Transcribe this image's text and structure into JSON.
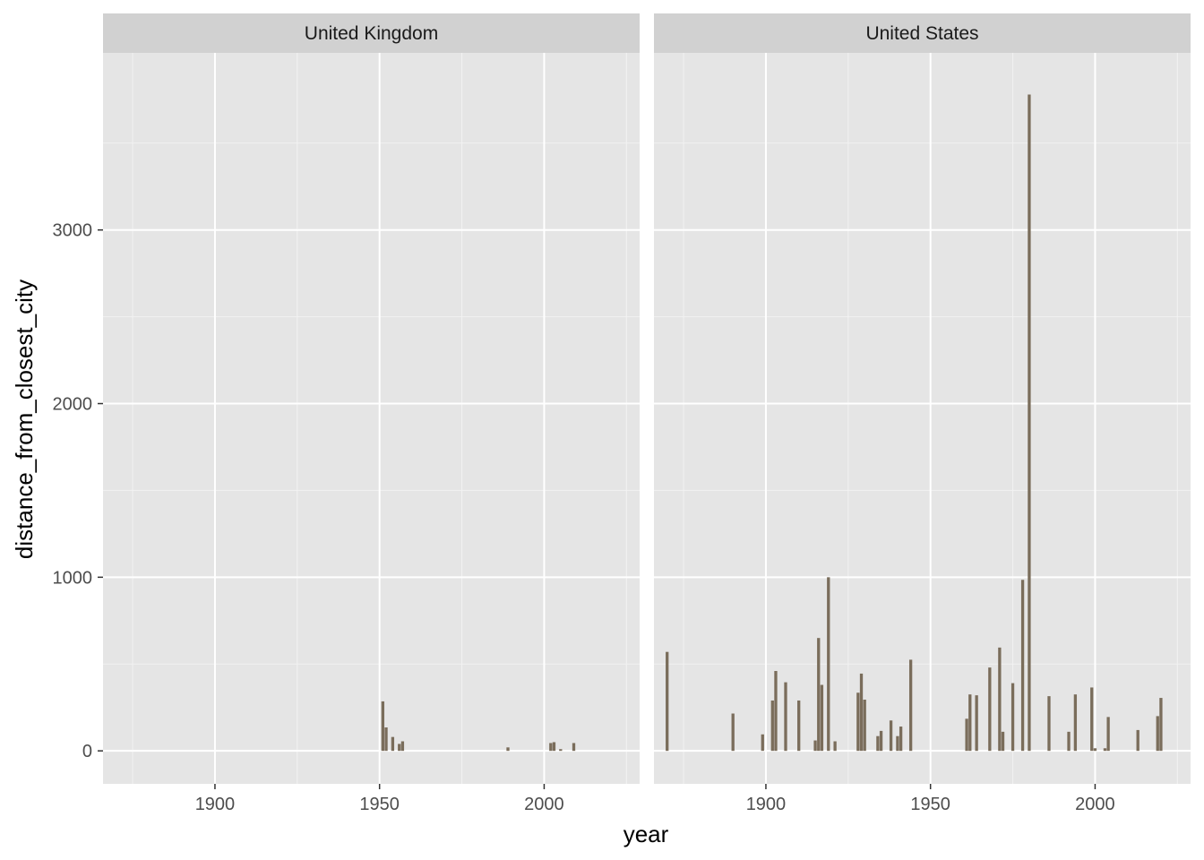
{
  "colors": {
    "panel_background": "#e5e5e5",
    "strip_background": "#d1d1d1",
    "grid_major": "#ffffff",
    "grid_minor": "#f2f2f2",
    "bar_fill": "#7a6d5b",
    "tick_color": "#333333"
  },
  "chart_data": {
    "type": "bar",
    "facet_by": "country",
    "xlabel": "year",
    "ylabel": "distance_from_closest_city",
    "xlim": [
      1866,
      2029
    ],
    "ylim": [
      -190,
      4020
    ],
    "x_ticks": [
      1900,
      1950,
      2000
    ],
    "y_ticks": [
      0,
      1000,
      2000,
      3000
    ],
    "grid": true,
    "panels": [
      {
        "name": "United Kingdom",
        "x": [
          1951,
          1952,
          1954,
          1956,
          1957,
          1989,
          2002,
          2003,
          2005,
          2009
        ],
        "values": [
          285,
          135,
          80,
          40,
          55,
          20,
          45,
          50,
          10,
          45
        ]
      },
      {
        "name": "United States",
        "x": [
          1870,
          1890,
          1899,
          1902,
          1903,
          1906,
          1910,
          1915,
          1916,
          1917,
          1919,
          1921,
          1928,
          1929,
          1930,
          1934,
          1935,
          1938,
          1940,
          1941,
          1944,
          1961,
          1962,
          1964,
          1968,
          1971,
          1972,
          1975,
          1978,
          1980,
          1986,
          1992,
          1994,
          1999,
          2000,
          2003,
          2004,
          2013,
          2019,
          2020
        ],
        "values": [
          570,
          215,
          95,
          290,
          460,
          395,
          290,
          60,
          650,
          380,
          1000,
          55,
          335,
          445,
          295,
          85,
          115,
          175,
          85,
          140,
          525,
          185,
          325,
          320,
          480,
          595,
          110,
          390,
          985,
          3780,
          315,
          110,
          325,
          365,
          15,
          15,
          195,
          120,
          200,
          305
        ]
      }
    ]
  }
}
